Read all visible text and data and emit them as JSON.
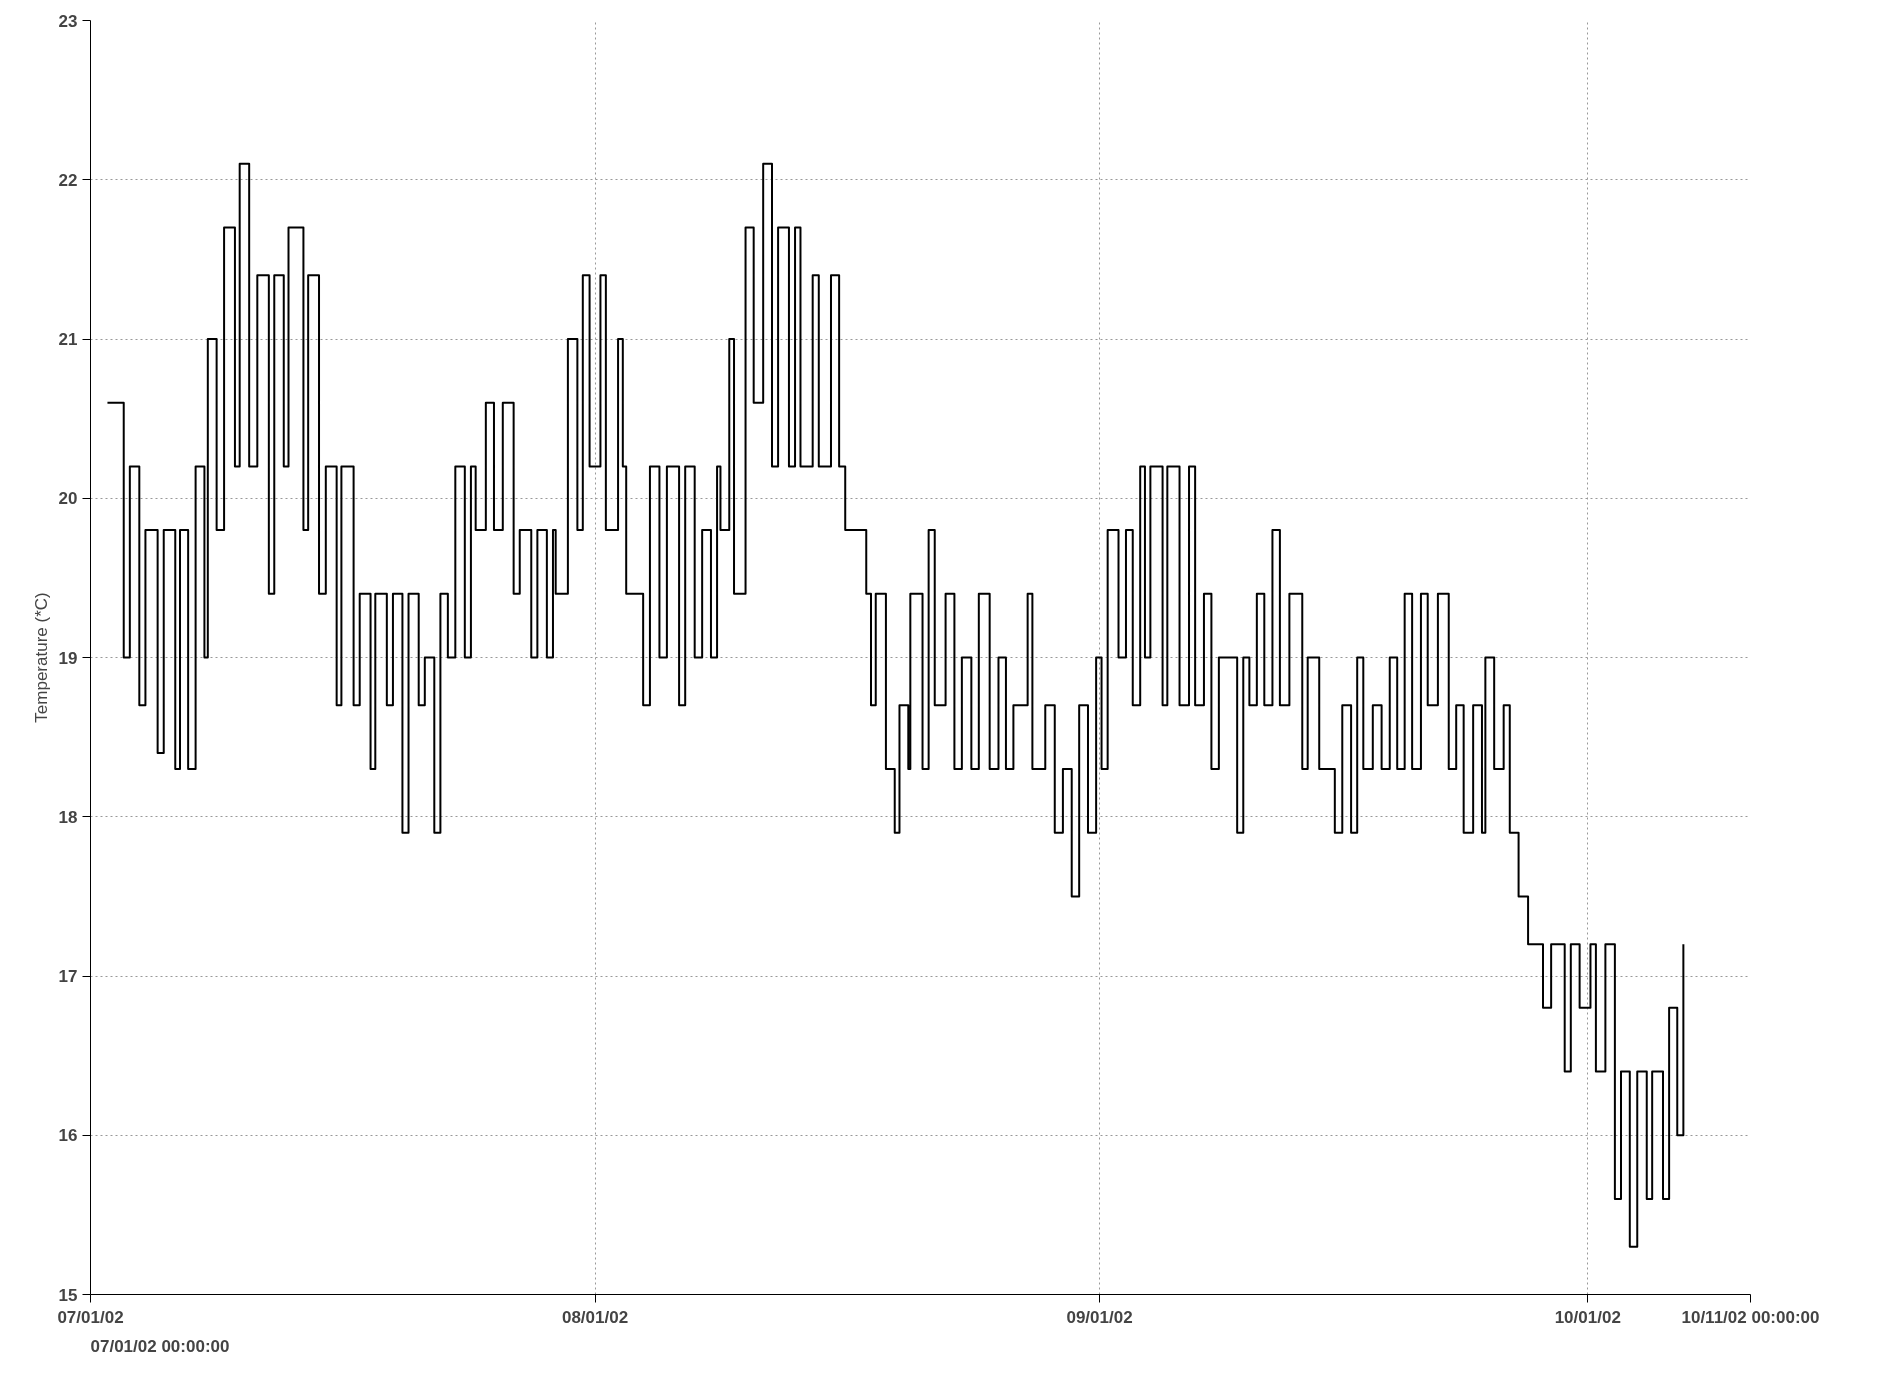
{
  "chart_data": {
    "type": "step",
    "ylabel": "Temperature (*C)",
    "xlim": [
      "2002-07-01",
      "2002-10-11"
    ],
    "xticks": [
      {
        "value": "2002-07-01",
        "label": "07/01/02"
      },
      {
        "value": "2002-08-01",
        "label": "08/01/02"
      },
      {
        "value": "2002-09-01",
        "label": "09/01/02"
      },
      {
        "value": "2002-10-01",
        "label": "10/01/02"
      },
      {
        "value": "2002-10-11",
        "label": "10/11/02 00:00:00"
      }
    ],
    "ylim": [
      15,
      23
    ],
    "yticks": [
      15,
      16,
      17,
      18,
      19,
      20,
      21,
      22,
      23
    ],
    "grid": true,
    "line_style": "solid",
    "annotations": [
      "07/01/02 00:00:00"
    ],
    "x": [
      "2002-07-02T01:00",
      "2002-07-03T01:00",
      "2002-07-03T10:00",
      "2002-07-04T00:00",
      "2002-07-04T09:00",
      "2002-07-05T03:00",
      "2002-07-05T12:00",
      "2002-07-06T05:00",
      "2002-07-06T12:00",
      "2002-07-07T00:00",
      "2002-07-07T11:00",
      "2002-07-08T00:00",
      "2002-07-08T05:00",
      "2002-07-08T18:00",
      "2002-07-09T05:00",
      "2002-07-09T21:00",
      "2002-07-10T04:00",
      "2002-07-10T18:00",
      "2002-07-11T06:00",
      "2002-07-11T23:00",
      "2002-07-12T07:00",
      "2002-07-12T21:00",
      "2002-07-13T04:00",
      "2002-07-14T02:00",
      "2002-07-14T09:00",
      "2002-07-15T01:00",
      "2002-07-15T11:00",
      "2002-07-16T03:00",
      "2002-07-16T10:00",
      "2002-07-17T04:00",
      "2002-07-17T13:00",
      "2002-07-18T05:00",
      "2002-07-18T12:00",
      "2002-07-19T05:00",
      "2002-07-19T14:00",
      "2002-07-20T04:00",
      "2002-07-20T13:00",
      "2002-07-21T04:00",
      "2002-07-21T13:00",
      "2002-07-22T03:00",
      "2002-07-22T12:00",
      "2002-07-22T23:00",
      "2002-07-23T10:00",
      "2002-07-24T00:00",
      "2002-07-24T09:00",
      "2002-07-24T16:00",
      "2002-07-25T07:00",
      "2002-07-25T19:00",
      "2002-07-26T08:00",
      "2002-07-27T00:00",
      "2002-07-27T09:00",
      "2002-07-28T02:00",
      "2002-07-28T11:00",
      "2002-07-29T01:00",
      "2002-07-29T10:00",
      "2002-07-29T14:00",
      "2002-07-30T08:00",
      "2002-07-30T22:00",
      "2002-07-31T06:00",
      "2002-07-31T16:00",
      "2002-08-01T08:00",
      "2002-08-01T16:00",
      "2002-08-02T10:00",
      "2002-08-02T17:00",
      "2002-08-02T22:00",
      "2002-08-03T15:00",
      "2002-08-03T23:00",
      "2002-08-04T09:00",
      "2002-08-04T23:00",
      "2002-08-05T10:00",
      "2002-08-06T04:00",
      "2002-08-06T13:00",
      "2002-08-07T03:00",
      "2002-08-07T14:00",
      "2002-08-08T03:00",
      "2002-08-08T12:00",
      "2002-08-08T17:00",
      "2002-08-09T06:00",
      "2002-08-09T13:00",
      "2002-08-10T06:00",
      "2002-08-10T18:00",
      "2002-08-11T08:00",
      "2002-08-11T21:00",
      "2002-08-12T06:00",
      "2002-08-12T22:00",
      "2002-08-13T07:00",
      "2002-08-13T15:00",
      "2002-08-14T09:00",
      "2002-08-14T18:00",
      "2002-08-15T12:00",
      "2002-08-16T00:00",
      "2002-08-16T09:00",
      "2002-08-17T00:00",
      "2002-08-17T16:00",
      "2002-08-17T23:00",
      "2002-08-18T06:00",
      "2002-08-18T21:00",
      "2002-08-19T10:00",
      "2002-08-19T17:00",
      "2002-08-20T06:00",
      "2002-08-20T09:00",
      "2002-08-21T03:00",
      "2002-08-21T12:00",
      "2002-08-21T21:00",
      "2002-08-22T13:00",
      "2002-08-23T02:00",
      "2002-08-23T13:00",
      "2002-08-24T03:00",
      "2002-08-24T14:00",
      "2002-08-25T06:00",
      "2002-08-25T19:00",
      "2002-08-26T06:00",
      "2002-08-26T17:00",
      "2002-08-27T14:00",
      "2002-08-27T21:00",
      "2002-08-28T16:00",
      "2002-08-29T06:00",
      "2002-08-29T18:00",
      "2002-08-30T07:00",
      "2002-08-30T18:00",
      "2002-08-31T07:00",
      "2002-08-31T19:00",
      "2002-09-01T03:00",
      "2002-09-01T12:00",
      "2002-09-02T04:00",
      "2002-09-02T15:00",
      "2002-09-03T01:00",
      "2002-09-03T12:00",
      "2002-09-03T19:00",
      "2002-09-04T03:00",
      "2002-09-04T21:00",
      "2002-09-05T04:00",
      "2002-09-05T22:00",
      "2002-09-06T12:00",
      "2002-09-06T21:00",
      "2002-09-07T10:00",
      "2002-09-07T21:00",
      "2002-09-08T08:00",
      "2002-09-09T11:00",
      "2002-09-09T20:00",
      "2002-09-10T05:00",
      "2002-09-10T16:00",
      "2002-09-11T03:00",
      "2002-09-11T15:00",
      "2002-09-12T02:00",
      "2002-09-12T16:00",
      "2002-09-13T11:00",
      "2002-09-13T19:00",
      "2002-09-14T12:00",
      "2002-09-15T11:00",
      "2002-09-15T22:00",
      "2002-09-16T11:00",
      "2002-09-16T20:00",
      "2002-09-17T05:00",
      "2002-09-17T19:00",
      "2002-09-18T08:00",
      "2002-09-18T20:00",
      "2002-09-19T07:00",
      "2002-09-19T18:00",
      "2002-09-20T05:00",
      "2002-09-20T18:00",
      "2002-09-21T04:00",
      "2002-09-21T19:00",
      "2002-09-22T11:00",
      "2002-09-22T22:00",
      "2002-09-23T09:00",
      "2002-09-23T23:00",
      "2002-09-24T12:00",
      "2002-09-24T17:00",
      "2002-09-25T06:00",
      "2002-09-25T20:00",
      "2002-09-26T05:00",
      "2002-09-26T18:00",
      "2002-09-27T08:00",
      "2002-09-28T06:00",
      "2002-09-28T18:00",
      "2002-09-29T14:00",
      "2002-09-29T23:00",
      "2002-09-30T12:00",
      "2002-10-01T04:00",
      "2002-10-01T12:00",
      "2002-10-02T02:00",
      "2002-10-02T16:00",
      "2002-10-03T01:00",
      "2002-10-03T14:00",
      "2002-10-04T01:00",
      "2002-10-04T15:00",
      "2002-10-04T23:00",
      "2002-10-05T15:00",
      "2002-10-06T00:00",
      "2002-10-06T12:00",
      "2002-10-06T21:00"
    ],
    "series": [
      {
        "color": "#000000",
        "values": [
          20.6,
          19.0,
          20.2,
          18.7,
          19.8,
          18.4,
          19.8,
          18.3,
          19.8,
          18.3,
          20.2,
          19.0,
          21.0,
          19.8,
          21.7,
          20.2,
          22.1,
          20.2,
          21.4,
          19.4,
          21.4,
          20.2,
          21.7,
          19.8,
          21.4,
          19.4,
          20.2,
          18.7,
          20.2,
          18.7,
          19.4,
          18.3,
          19.4,
          18.7,
          19.4,
          17.9,
          19.4,
          18.7,
          19.0,
          17.9,
          19.4,
          19.0,
          20.2,
          19.0,
          20.2,
          19.8,
          20.6,
          19.8,
          20.6,
          19.4,
          19.8,
          19.0,
          19.8,
          19.0,
          19.8,
          19.4,
          21.0,
          19.8,
          21.4,
          20.2,
          21.4,
          19.8,
          21.0,
          20.2,
          19.4,
          19.4,
          18.7,
          20.2,
          19.0,
          20.2,
          18.7,
          20.2,
          19.0,
          19.8,
          19.0,
          20.2,
          19.8,
          21.0,
          19.4,
          21.7,
          20.6,
          22.1,
          20.2,
          21.7,
          20.2,
          21.7,
          20.2,
          21.4,
          20.2,
          21.4,
          20.2,
          19.8,
          19.8,
          19.4,
          18.7,
          19.4,
          18.3,
          17.9,
          18.7,
          18.3,
          19.4,
          18.3,
          19.8,
          18.7,
          19.4,
          18.3,
          19.0,
          18.3,
          19.4,
          18.3,
          19.0,
          18.3,
          18.7,
          19.4,
          18.3,
          18.7,
          17.9,
          18.3,
          17.5,
          18.7,
          17.9,
          19.0,
          18.3,
          19.8,
          19.0,
          19.8,
          18.7,
          20.2,
          19.0,
          20.2,
          18.7,
          20.2,
          18.7,
          20.2,
          18.7,
          19.4,
          18.3,
          19.0,
          17.9,
          19.0,
          18.7,
          19.4,
          18.7,
          19.8,
          18.7,
          19.4,
          18.3,
          19.0,
          18.3,
          17.9,
          18.7,
          17.9,
          19.0,
          18.3,
          18.7,
          18.3,
          19.0,
          18.3,
          19.4,
          18.3,
          19.4,
          18.7,
          19.4,
          18.3,
          18.7,
          17.9,
          18.7,
          17.9,
          19.0,
          18.3,
          18.7,
          17.9,
          17.5,
          17.2,
          16.8,
          17.2,
          16.4,
          17.2,
          16.8,
          17.2,
          16.4,
          17.2,
          15.6,
          16.4,
          15.3,
          16.4,
          15.6,
          16.4,
          15.6,
          16.8,
          16.0,
          17.2
        ]
      }
    ]
  }
}
